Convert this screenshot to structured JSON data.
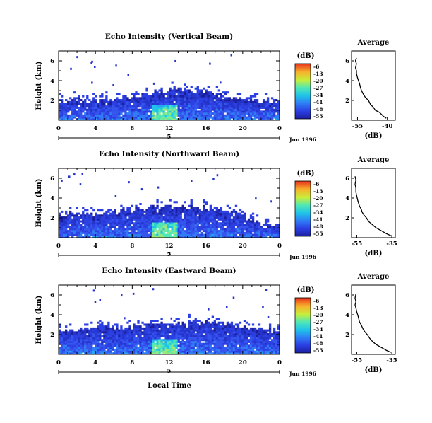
{
  "figure": {
    "panels": [
      {
        "title": "Echo Intensity (Vertical Beam)",
        "ylabel": "Height (km)",
        "xticks": [
          "0",
          "4",
          "8",
          "12",
          "16",
          "20",
          "0"
        ],
        "yticks": [
          "6",
          "4",
          "2"
        ],
        "day_marker": "5",
        "date_label": "Jun 1996",
        "colorbar_label": "(dB)",
        "colorbar_ticks": [
          "-6",
          "-13",
          "-20",
          "-27",
          "-34",
          "-41",
          "-48",
          "-55"
        ],
        "avg_title": "Average",
        "avg_xlabel": "(dB)",
        "avg_xticks": [
          "-55",
          "-40"
        ],
        "avg_yticks": [
          "6",
          "4",
          "2"
        ]
      },
      {
        "title": "Echo Intensity (Northward Beam)",
        "ylabel": "Height (km)",
        "xticks": [
          "0",
          "4",
          "8",
          "12",
          "16",
          "20",
          "0"
        ],
        "yticks": [
          "6",
          "4",
          "2"
        ],
        "day_marker": "5",
        "date_label": "Jun 1996",
        "colorbar_label": "(dB)",
        "colorbar_ticks": [
          "-6",
          "-13",
          "-20",
          "-27",
          "-34",
          "-41",
          "-48",
          "-55"
        ],
        "avg_title": "Average",
        "avg_xlabel": "(dB)",
        "avg_xticks": [
          "-55",
          "-35"
        ],
        "avg_yticks": [
          "6",
          "4",
          "2"
        ]
      },
      {
        "title": "Echo Intensity (Eastward Beam)",
        "ylabel": "Height (km)",
        "xticks": [
          "0",
          "4",
          "8",
          "12",
          "16",
          "20",
          "0"
        ],
        "yticks": [
          "6",
          "4",
          "2"
        ],
        "day_marker": "5",
        "date_label": "Jun 1996",
        "colorbar_label": "(dB)",
        "colorbar_ticks": [
          "-6",
          "-13",
          "-20",
          "-27",
          "-34",
          "-41",
          "-48",
          "-55"
        ],
        "avg_title": "Average",
        "avg_xlabel": "(dB)",
        "avg_xticks": [
          "-55",
          "-35"
        ],
        "avg_yticks": [
          "6",
          "4",
          "2"
        ]
      }
    ],
    "xlabel": "Local Time"
  },
  "chart_data": [
    {
      "type": "heatmap",
      "title": "Echo Intensity (Vertical Beam)",
      "xlabel": "Local Time",
      "ylabel": "Height (km)",
      "xlim": [
        0,
        24
      ],
      "ylim": [
        0,
        7
      ],
      "colorscale": {
        "label": "(dB)",
        "range": [
          -55,
          -6
        ]
      },
      "echo_top_km": [
        [
          0,
          1.9
        ],
        [
          2,
          2.1
        ],
        [
          4,
          2.0
        ],
        [
          6,
          2.1
        ],
        [
          8,
          2.4
        ],
        [
          10,
          2.7
        ],
        [
          12,
          3.1
        ],
        [
          14,
          3.0
        ],
        [
          16,
          2.9
        ],
        [
          18,
          2.6
        ],
        [
          20,
          2.0
        ],
        [
          22,
          1.9
        ],
        [
          24,
          1.9
        ]
      ],
      "line_series": {
        "type": "line",
        "title": "Average",
        "xlabel": "(dB)",
        "xlim": [
          -58,
          -36
        ],
        "ylim": [
          0,
          7
        ],
        "x": [
          -40.5,
          -42,
          -44,
          -46,
          -47,
          -48.5,
          -49.5,
          -51,
          -52,
          -53,
          -53.5,
          -54,
          -54.5,
          -55,
          -55.5,
          -55.5,
          -56,
          -55.5,
          -56,
          -55.5
        ],
        "y": [
          0.2,
          0.4,
          0.8,
          1.0,
          1.3,
          1.6,
          2.0,
          2.3,
          2.6,
          3.0,
          3.3,
          3.7,
          4.0,
          4.3,
          4.7,
          5.0,
          5.3,
          5.7,
          6.0,
          6.3
        ]
      }
    },
    {
      "type": "heatmap",
      "title": "Echo Intensity (Northward Beam)",
      "xlabel": "Local Time",
      "ylabel": "Height (km)",
      "xlim": [
        0,
        24
      ],
      "ylim": [
        0,
        7
      ],
      "colorscale": {
        "label": "(dB)",
        "range": [
          -55,
          -6
        ]
      },
      "echo_top_km": [
        [
          0,
          2.3
        ],
        [
          2,
          2.5
        ],
        [
          4,
          2.4
        ],
        [
          6,
          2.6
        ],
        [
          8,
          2.8
        ],
        [
          10,
          3.0
        ],
        [
          12,
          3.3
        ],
        [
          14,
          3.1
        ],
        [
          16,
          3.0
        ],
        [
          18,
          2.7
        ],
        [
          20,
          2.4
        ],
        [
          22,
          1.3
        ],
        [
          24,
          1.3
        ]
      ],
      "line_series": {
        "type": "line",
        "title": "Average",
        "xlabel": "(dB)",
        "xlim": [
          -58,
          -33
        ],
        "ylim": [
          0,
          7
        ],
        "x": [
          -35.5,
          -38,
          -41,
          -44,
          -46,
          -48,
          -49.5,
          -51,
          -52,
          -52.5,
          -53.5,
          -54,
          -54.5,
          -55,
          -55.5,
          -55.5,
          -56,
          -55.5,
          -56
        ],
        "y": [
          0.2,
          0.4,
          0.7,
          1.0,
          1.3,
          1.6,
          2.0,
          2.3,
          2.6,
          2.9,
          3.2,
          3.5,
          3.8,
          4.2,
          4.6,
          5.0,
          5.4,
          5.8,
          6.2
        ]
      }
    },
    {
      "type": "heatmap",
      "title": "Echo Intensity (Eastward Beam)",
      "xlabel": "Local Time",
      "ylabel": "Height (km)",
      "xlim": [
        0,
        24
      ],
      "ylim": [
        0,
        7
      ],
      "colorscale": {
        "label": "(dB)",
        "range": [
          -55,
          -6
        ]
      },
      "echo_top_km": [
        [
          0,
          2.3
        ],
        [
          2,
          2.5
        ],
        [
          4,
          2.6
        ],
        [
          6,
          2.6
        ],
        [
          8,
          2.8
        ],
        [
          10,
          3.0
        ],
        [
          12,
          3.1
        ],
        [
          14,
          3.2
        ],
        [
          16,
          3.3
        ],
        [
          18,
          3.1
        ],
        [
          20,
          2.8
        ],
        [
          22,
          2.5
        ],
        [
          24,
          2.3
        ]
      ],
      "line_series": {
        "type": "line",
        "title": "Average",
        "xlabel": "(dB)",
        "xlim": [
          -58,
          -33
        ],
        "ylim": [
          0,
          7
        ],
        "x": [
          -35.5,
          -38,
          -41,
          -44,
          -46,
          -47.5,
          -49,
          -50.5,
          -51.5,
          -52.5,
          -53.5,
          -54,
          -54.5,
          -55,
          -55.5,
          -56,
          -55.5,
          -56,
          -55.5
        ],
        "y": [
          0.2,
          0.4,
          0.7,
          1.0,
          1.3,
          1.6,
          2.0,
          2.3,
          2.6,
          3.0,
          3.3,
          3.7,
          4.0,
          4.3,
          4.7,
          5.0,
          5.3,
          5.7,
          6.1
        ]
      }
    }
  ]
}
